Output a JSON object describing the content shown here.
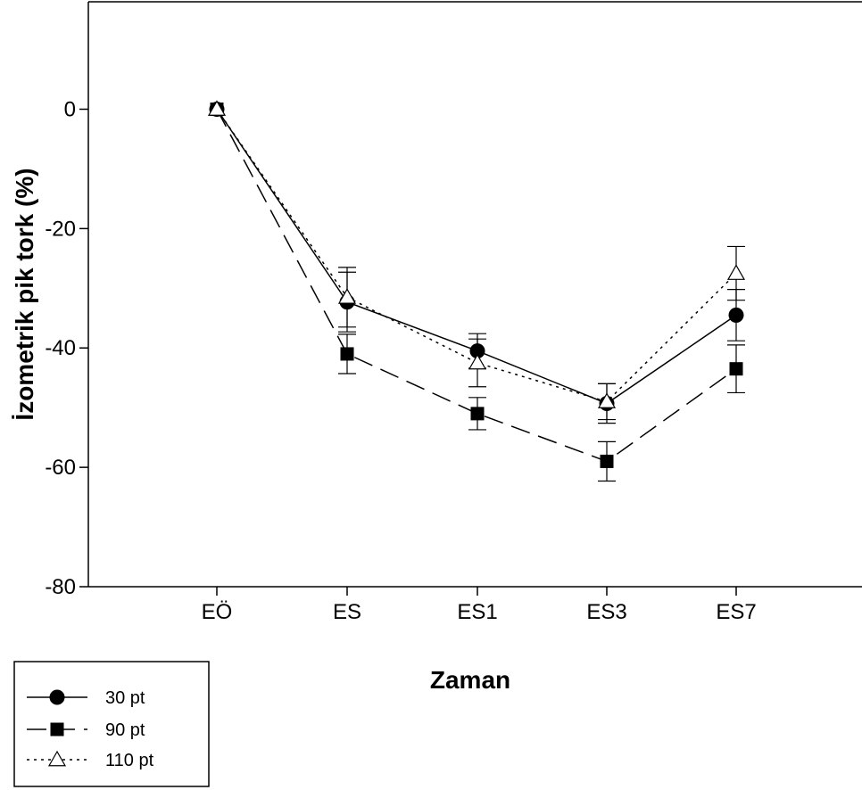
{
  "chart_data": {
    "type": "line",
    "title": "",
    "xlabel": "Zaman",
    "ylabel": "İzometrik pik tork (%)",
    "categories": [
      "EÖ",
      "ES",
      "ES1",
      "ES3",
      "ES7"
    ],
    "ylim": [
      -80,
      18
    ],
    "yticks": [
      0,
      -20,
      -40,
      -60,
      -80
    ],
    "ytick_labels": [
      "0",
      "-20",
      "-40",
      "-60",
      "-80"
    ],
    "grid": false,
    "legend_position": "bottom-left",
    "series": [
      {
        "name": "30 pt",
        "marker": "filled-circle",
        "line_style": "solid",
        "color": "#000000",
        "values": [
          0,
          -32.3,
          -40.5,
          -49.3,
          -34.5
        ],
        "error": [
          0,
          5.0,
          2.9,
          3.3,
          4.3
        ]
      },
      {
        "name": "90 pt",
        "marker": "filled-square",
        "line_style": "dashed",
        "color": "#000000",
        "values": [
          0,
          -41.0,
          -51.0,
          -59.0,
          -43.5
        ],
        "error": [
          0,
          3.3,
          2.7,
          3.3,
          4.0
        ]
      },
      {
        "name": "110 pt",
        "marker": "open-triangle",
        "line_style": "dotted",
        "color": "#000000",
        "values": [
          0,
          -31.5,
          -42.5,
          -49.0,
          -27.5
        ],
        "error": [
          0,
          5.0,
          4.0,
          3.0,
          4.5
        ]
      }
    ]
  }
}
